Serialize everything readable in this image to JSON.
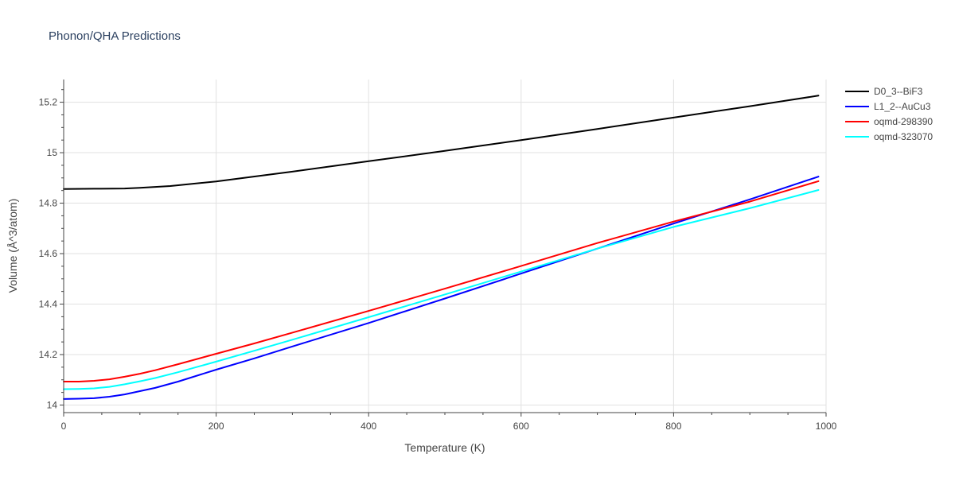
{
  "chart_data": {
    "type": "line",
    "title": "Phonon/QHA Predictions",
    "xlabel": "Temperature (K)",
    "ylabel": "Volume (Å^3/atom)",
    "xlim": [
      0,
      1000
    ],
    "ylim": [
      13.97,
      15.29
    ],
    "xticks": [
      0,
      200,
      400,
      600,
      800,
      1000
    ],
    "xtick_labels": [
      "0",
      "200",
      "400",
      "600",
      "800",
      "1000"
    ],
    "yticks": [
      14,
      14.2,
      14.4,
      14.6,
      14.8,
      15,
      15.2
    ],
    "ytick_labels": [
      "14",
      "14.2",
      "14.4",
      "14.6",
      "14.8",
      "15",
      "15.2"
    ],
    "grid": true,
    "legend_position": "top-right",
    "series": [
      {
        "name": "D0_3--BiF3",
        "color": "#000000",
        "x": [
          0,
          40,
          80,
          100,
          140,
          200,
          300,
          400,
          500,
          600,
          700,
          800,
          900,
          990
        ],
        "y": [
          14.856,
          14.857,
          14.858,
          14.861,
          14.868,
          14.886,
          14.925,
          14.966,
          15.007,
          15.05,
          15.094,
          15.139,
          15.184,
          15.226
        ]
      },
      {
        "name": "L1_2--AuCu3",
        "color": "#0000ff",
        "x": [
          0,
          20,
          40,
          60,
          80,
          100,
          120,
          150,
          200,
          250,
          300,
          400,
          500,
          600,
          700,
          800,
          900,
          990
        ],
        "y": [
          14.024,
          14.025,
          14.027,
          14.033,
          14.042,
          14.055,
          14.068,
          14.093,
          14.14,
          14.185,
          14.232,
          14.325,
          14.422,
          14.521,
          14.62,
          14.719,
          14.815,
          14.905
        ]
      },
      {
        "name": "oqmd-298390",
        "color": "#ff0000",
        "x": [
          0,
          20,
          40,
          60,
          80,
          100,
          120,
          150,
          200,
          250,
          300,
          400,
          500,
          600,
          700,
          800,
          900,
          990
        ],
        "y": [
          14.093,
          14.093,
          14.096,
          14.102,
          14.112,
          14.124,
          14.138,
          14.162,
          14.203,
          14.244,
          14.287,
          14.373,
          14.461,
          14.551,
          14.642,
          14.727,
          14.806,
          14.887
        ]
      },
      {
        "name": "oqmd-323070",
        "color": "#00ffff",
        "x": [
          0,
          20,
          40,
          60,
          80,
          100,
          120,
          150,
          200,
          250,
          300,
          400,
          500,
          600,
          700,
          800,
          900,
          990
        ],
        "y": [
          14.063,
          14.064,
          14.066,
          14.072,
          14.082,
          14.094,
          14.107,
          14.13,
          14.172,
          14.215,
          14.259,
          14.348,
          14.438,
          14.529,
          14.62,
          14.706,
          14.78,
          14.852
        ]
      }
    ]
  }
}
